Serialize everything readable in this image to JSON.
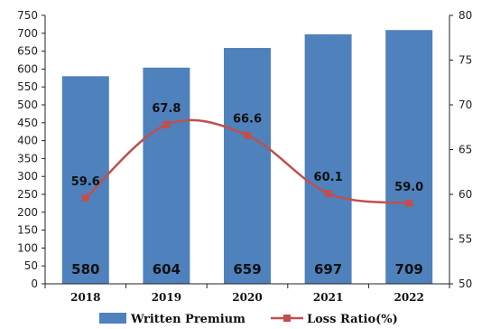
{
  "chart_data": {
    "type": "bar",
    "categories": [
      "2018",
      "2019",
      "2020",
      "2021",
      "2022"
    ],
    "series": [
      {
        "name": "Written Premium",
        "type": "bar",
        "axis": "left",
        "values": [
          580,
          604,
          659,
          697,
          709
        ],
        "color": "#4f81bd"
      },
      {
        "name": "Loss Ratio(%)",
        "type": "line",
        "axis": "right",
        "values": [
          59.6,
          67.8,
          66.6,
          60.1,
          59.0
        ],
        "labels": [
          "59.6",
          "67.8",
          "66.6",
          "60.1",
          "59.0"
        ],
        "color": "#c0504d",
        "marker": "square",
        "smooth": true
      }
    ],
    "y_left": {
      "min": 0,
      "max": 750,
      "step": 50,
      "ticks": [
        "0",
        "50",
        "100",
        "150",
        "200",
        "250",
        "300",
        "350",
        "400",
        "450",
        "500",
        "550",
        "600",
        "650",
        "700",
        "750"
      ]
    },
    "y_right": {
      "min": 50,
      "max": 80,
      "step": 5,
      "ticks": [
        "50",
        "55",
        "60",
        "65",
        "70",
        "75",
        "80"
      ]
    },
    "title": "",
    "grid": false,
    "legend_position": "bottom"
  }
}
